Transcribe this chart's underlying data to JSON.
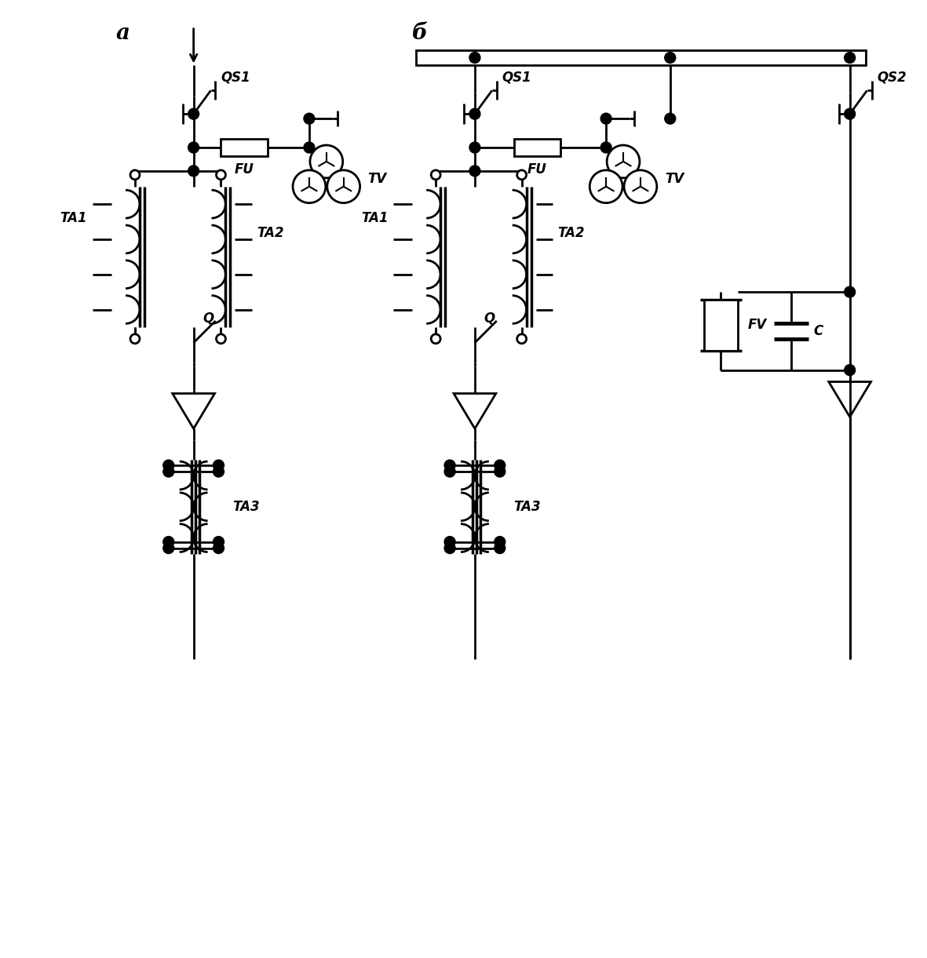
{
  "bg_color": "#ffffff",
  "lc": "#000000",
  "lw": 2.0,
  "label_a": "a",
  "label_b": "б",
  "QS1_a": "QS1",
  "FU_a": "FU",
  "TV_a": "TV",
  "TA1_a": "TA1",
  "TA2_a": "TA2",
  "TA3_a": "TA3",
  "Q_a": "Q",
  "QS1_b": "QS1",
  "QS2_b": "QS2",
  "FU_b": "FU",
  "TV_b": "TV",
  "TA1_b": "TA1",
  "TA2_b": "TA2",
  "TA3_b": "TA3",
  "Q_b": "Q",
  "FV_b": "FV",
  "C_b": "C"
}
